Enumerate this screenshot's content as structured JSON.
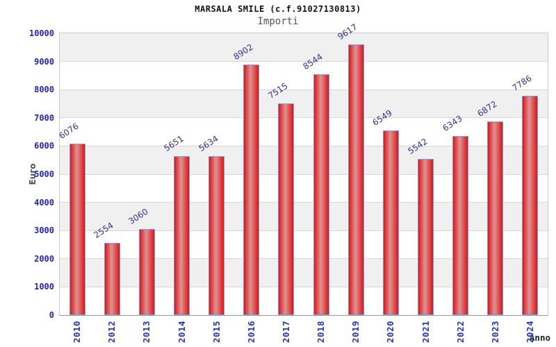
{
  "header": {
    "title": "MARSALA SMILE (c.f.91027130813)",
    "subtitle": "Importi"
  },
  "chart_data": {
    "type": "bar",
    "title": "MARSALA SMILE (c.f.91027130813)",
    "subtitle": "Importi",
    "xlabel": "Anno",
    "ylabel": "Euro",
    "categories": [
      "2010",
      "2012",
      "2013",
      "2014",
      "2015",
      "2016",
      "2017",
      "2018",
      "2019",
      "2020",
      "2021",
      "2022",
      "2023",
      "2024"
    ],
    "values": [
      6076,
      2554,
      3060,
      5651,
      5634,
      8902,
      7515,
      8544,
      9617,
      6549,
      5542,
      6343,
      6872,
      7786
    ],
    "ylim": [
      0,
      10000
    ],
    "ytick_step": 1000,
    "yticks": [
      0,
      1000,
      2000,
      3000,
      4000,
      5000,
      6000,
      7000,
      8000,
      9000,
      10000
    ],
    "grid": true,
    "legend": null,
    "colors": {
      "band_gray": "#f0f0f0",
      "band_white": "#ffffff",
      "gridline": "#d7d7d7",
      "axis_line": "#999999",
      "plot_border": "#cccccc",
      "bar_edge_red": "#e01414",
      "bar_center_light": "#dc9494",
      "bar_border_blue": "#70a1f1",
      "ytick_blue": "#2222cc",
      "xtick_blue": "#2233cc",
      "value_label_navy": "#32329b",
      "title_color": "#111111",
      "subtitle_color": "#555555",
      "axis_title_color": "#555555",
      "xlabel_color": "#222222"
    }
  }
}
